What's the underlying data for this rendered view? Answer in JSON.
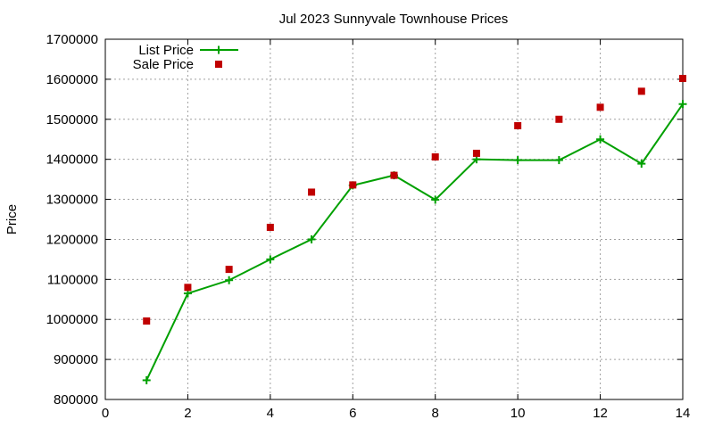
{
  "chart_data": {
    "type": "line",
    "title": "Jul 2023 Sunnyvale Townhouse Prices",
    "xlabel": "",
    "ylabel": "Price",
    "xlim": [
      0,
      14
    ],
    "ylim": [
      800000,
      1700000
    ],
    "xticks": [
      "0",
      "2",
      "4",
      "6",
      "8",
      "10",
      "12",
      "14"
    ],
    "yticks": [
      "800000",
      "900000",
      "1000000",
      "1100000",
      "1200000",
      "1300000",
      "1400000",
      "1500000",
      "1600000",
      "1700000"
    ],
    "grid": true,
    "legend_position": "top-left",
    "x": [
      1,
      2,
      3,
      4,
      5,
      6,
      7,
      8,
      9,
      10,
      11,
      12,
      13,
      14
    ],
    "series": [
      {
        "name": "List Price",
        "style": "line-plus",
        "color": "#00a000",
        "values": [
          848000,
          1065000,
          1098000,
          1150000,
          1200000,
          1335000,
          1360000,
          1299000,
          1400000,
          1398000,
          1398000,
          1450000,
          1389000,
          1538000
        ]
      },
      {
        "name": "Sale Price",
        "style": "square",
        "color": "#c00000",
        "values": [
          996000,
          1080000,
          1125000,
          1230000,
          1318000,
          1336000,
          1360000,
          1406000,
          1415000,
          1484000,
          1500000,
          1530000,
          1570000,
          1602000
        ]
      }
    ]
  }
}
